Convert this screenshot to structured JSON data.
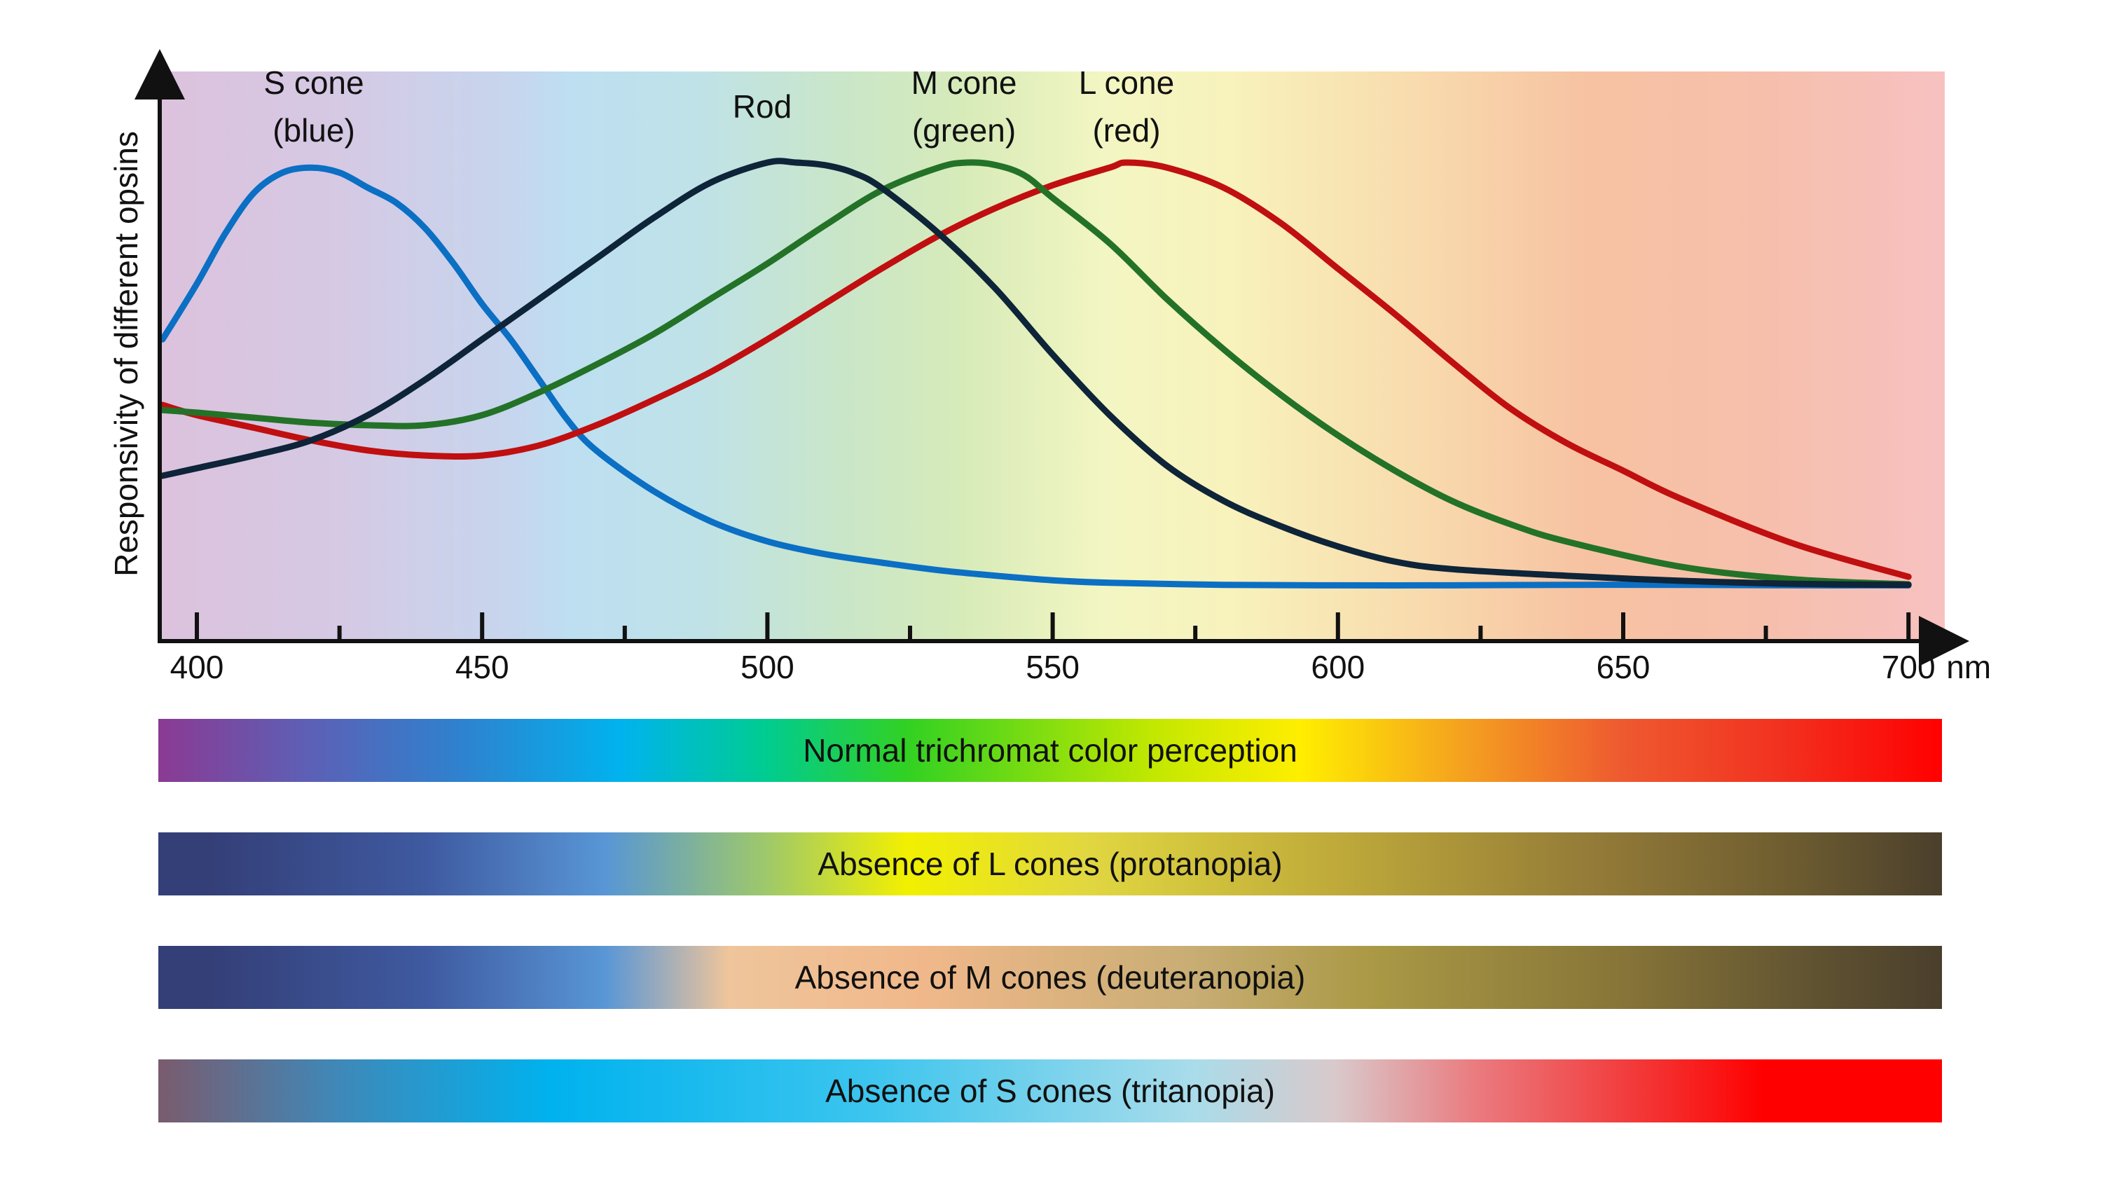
{
  "chart_data": {
    "type": "line",
    "xlabel": "nm",
    "ylabel": "Responsivity of different opsins",
    "xlim": [
      394,
      706
    ],
    "ylim": [
      0,
      100
    ],
    "xticks_major": [
      400,
      450,
      500,
      550,
      600,
      650,
      700
    ],
    "xticks_minor": [
      425,
      475,
      525,
      575,
      625,
      675
    ],
    "tick_labels": [
      "400",
      "450",
      "500",
      "550",
      "600",
      "650",
      "700"
    ],
    "grid": false,
    "background": "visible-spectrum gradient (violet to red)",
    "series": [
      {
        "name": "S cone (blue)",
        "label_lines": [
          "S cone",
          "(blue)"
        ],
        "color": "#0b6fc4",
        "x": [
          394,
          400,
          405,
          410,
          415,
          420,
          425,
          430,
          435,
          440,
          445,
          450,
          455,
          460,
          465,
          470,
          480,
          490,
          500,
          510,
          520,
          530,
          540,
          550,
          560,
          580,
          600,
          620,
          640,
          660,
          680,
          700
        ],
        "y": [
          51,
          62,
          72,
          80,
          84,
          85,
          84,
          81,
          78,
          73,
          66,
          58,
          51,
          43,
          35,
          29,
          21,
          15,
          11,
          8.5,
          6.8,
          5.3,
          4.2,
          3.3,
          2.8,
          2.4,
          2.3,
          2.3,
          2.4,
          2.4,
          2.3,
          2.3
        ]
      },
      {
        "name": "Rod",
        "label_lines": [
          "Rod"
        ],
        "color": "#0e2438",
        "x": [
          394,
          400,
          410,
          420,
          430,
          440,
          450,
          460,
          470,
          480,
          490,
          500,
          505,
          510,
          515,
          520,
          530,
          540,
          550,
          560,
          570,
          580,
          590,
          600,
          610,
          620,
          640,
          660,
          680,
          700
        ],
        "y": [
          24,
          25.5,
          28,
          31,
          36,
          43,
          51,
          59,
          67,
          75,
          82,
          86,
          86,
          85.5,
          84,
          81,
          72,
          61,
          48,
          36,
          26,
          19,
          14,
          10,
          7,
          5.5,
          4.2,
          3.2,
          2.6,
          2.4
        ]
      },
      {
        "name": "M cone (green)",
        "label_lines": [
          "M cone",
          "(green)"
        ],
        "color": "#237228",
        "x": [
          394,
          400,
          410,
          420,
          430,
          440,
          450,
          460,
          470,
          480,
          490,
          500,
          510,
          520,
          530,
          535,
          540,
          545,
          550,
          560,
          570,
          580,
          590,
          600,
          610,
          620,
          630,
          640,
          660,
          680,
          700
        ],
        "y": [
          37,
          36.5,
          35.5,
          34.5,
          34,
          34,
          36,
          40.5,
          46,
          52,
          59,
          66,
          73.5,
          80.5,
          85,
          86,
          85.5,
          83.5,
          79,
          70,
          59,
          49,
          40,
          32,
          25,
          19,
          14.5,
          11,
          6,
          3.5,
          2.5
        ]
      },
      {
        "name": "L cone (red)",
        "label_lines": [
          "L cone",
          "(red)"
        ],
        "color": "#c00f10",
        "x": [
          394,
          400,
          410,
          420,
          430,
          440,
          450,
          460,
          470,
          480,
          490,
          500,
          510,
          520,
          530,
          540,
          550,
          560,
          563,
          570,
          580,
          590,
          600,
          610,
          620,
          630,
          640,
          650,
          660,
          680,
          700
        ],
        "y": [
          38,
          36,
          33.5,
          31,
          29,
          28,
          28,
          30,
          34,
          39,
          44.5,
          51,
          58,
          65,
          71.5,
          77,
          81.5,
          85,
          86,
          85,
          81,
          74,
          65,
          56,
          46.5,
          37.5,
          30.5,
          25,
          19.5,
          10.5,
          4
        ]
      }
    ]
  },
  "spectrum_bars": [
    {
      "label": "Normal trichromat color perception",
      "stops": [
        [
          "#8b3a93",
          0
        ],
        [
          "#5f5eb4",
          0.08
        ],
        [
          "#2e82cf",
          0.17
        ],
        [
          "#00b3ee",
          0.26
        ],
        [
          "#00cc92",
          0.34
        ],
        [
          "#32d122",
          0.42
        ],
        [
          "#c4e800",
          0.56
        ],
        [
          "#ffee00",
          0.64
        ],
        [
          "#f5a21f",
          0.73
        ],
        [
          "#ee5a30",
          0.82
        ],
        [
          "#f2311f",
          0.91
        ],
        [
          "#ff0000",
          1
        ]
      ]
    },
    {
      "label": "Absence of L cones (protanopia)",
      "stops": [
        [
          "#343f78",
          0.03
        ],
        [
          "#3f5aa0",
          0.15
        ],
        [
          "#5896d6",
          0.25
        ],
        [
          "#9ec86b",
          0.34
        ],
        [
          "#f2f000",
          0.42
        ],
        [
          "#e1d740",
          0.52
        ],
        [
          "#bfaa3a",
          0.66
        ],
        [
          "#957c38",
          0.8
        ],
        [
          "#6c5b30",
          0.92
        ],
        [
          "#4a3f2c",
          1
        ]
      ]
    },
    {
      "label": "Absence of M cones (deuteranopia)",
      "stops": [
        [
          "#343f78",
          0.03
        ],
        [
          "#3f5aa0",
          0.15
        ],
        [
          "#5896d6",
          0.25
        ],
        [
          "#efc59b",
          0.32
        ],
        [
          "#f0b88a",
          0.43
        ],
        [
          "#c8ad74",
          0.58
        ],
        [
          "#aa9945",
          0.68
        ],
        [
          "#877538",
          0.82
        ],
        [
          "#5c4f30",
          0.94
        ],
        [
          "#4a3f2c",
          1
        ]
      ]
    },
    {
      "label": "Absence of S cones (tritanopia)",
      "stops": [
        [
          "#7a5b6e",
          0
        ],
        [
          "#3f88b8",
          0.1
        ],
        [
          "#00b2ee",
          0.22
        ],
        [
          "#3cc5ee",
          0.4
        ],
        [
          "#a9dcea",
          0.58
        ],
        [
          "#d9c9cb",
          0.66
        ],
        [
          "#ea7a7e",
          0.74
        ],
        [
          "#f43030",
          0.84
        ],
        [
          "#ff0000",
          0.9
        ],
        [
          "#ff0000",
          1
        ]
      ]
    }
  ]
}
